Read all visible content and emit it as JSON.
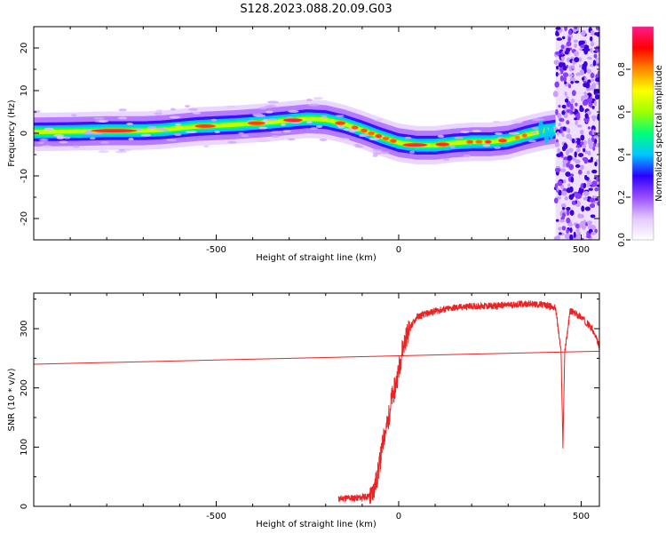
{
  "title": "S128.2023.088.20.09.G03",
  "chart_data": [
    {
      "type": "heatmap",
      "xlabel": "Height of straight line (km)",
      "ylabel": "Frequency (Hz)",
      "xlim": [
        -1000,
        550
      ],
      "ylim": [
        -25,
        25
      ],
      "xticks": [
        -500,
        0,
        500
      ],
      "yticks": [
        -20,
        -10,
        0,
        10,
        20
      ],
      "colorbar": {
        "label": "Normalized spectral amplitude",
        "range": [
          0,
          1
        ],
        "ticks": [
          0.0,
          0.2,
          0.4,
          0.6,
          0.8
        ],
        "colors": [
          "#ffffff",
          "#e4c8ff",
          "#9a4dff",
          "#2a00ff",
          "#00c8ff",
          "#00ff7a",
          "#a0ff00",
          "#ffff00",
          "#ff8800",
          "#ff0000",
          "#ff1a8c"
        ]
      },
      "ridge": {
        "x": [
          -1000,
          -900,
          -800,
          -700,
          -650,
          -600,
          -550,
          -500,
          -450,
          -400,
          -350,
          -300,
          -250,
          -200,
          -150,
          -100,
          -50,
          0,
          50,
          100,
          150,
          200,
          250,
          300,
          350,
          400,
          430
        ],
        "y": [
          0.3,
          0.4,
          0.6,
          0.6,
          0.8,
          1.2,
          1.6,
          1.8,
          2.0,
          2.3,
          2.6,
          3.0,
          3.4,
          3.2,
          2.2,
          0.8,
          -0.8,
          -2.2,
          -2.8,
          -2.8,
          -2.3,
          -2.0,
          -2.0,
          -1.6,
          -0.4,
          0.6,
          1.0
        ]
      },
      "noise_region_x": [
        430,
        550
      ]
    },
    {
      "type": "line",
      "xlabel": "Height of straight line (km)",
      "ylabel": "SNR (10 * v/v)",
      "xlim": [
        -1000,
        550
      ],
      "ylim": [
        0,
        360
      ],
      "xticks": [
        -500,
        0,
        500
      ],
      "yticks": [
        0,
        100,
        200,
        300
      ],
      "series": [
        {
          "color": "#ee2222",
          "x": [
            -165,
            -150,
            -120,
            -100,
            -75,
            -60,
            -50,
            -40,
            -30,
            -20,
            -10,
            0,
            10,
            20,
            30,
            50,
            100,
            150,
            200,
            250,
            300,
            350,
            400,
            430,
            445,
            450,
            455,
            470,
            500,
            530,
            550
          ],
          "y": [
            12,
            14,
            14,
            15,
            18,
            45,
            80,
            120,
            140,
            180,
            200,
            230,
            265,
            285,
            300,
            320,
            330,
            335,
            338,
            338,
            340,
            342,
            340,
            335,
            260,
            100,
            260,
            330,
            320,
            300,
            270
          ]
        },
        {
          "color": "#ee2222",
          "x": [
            -1000,
            550
          ],
          "y": [
            240,
            262
          ]
        }
      ]
    }
  ]
}
